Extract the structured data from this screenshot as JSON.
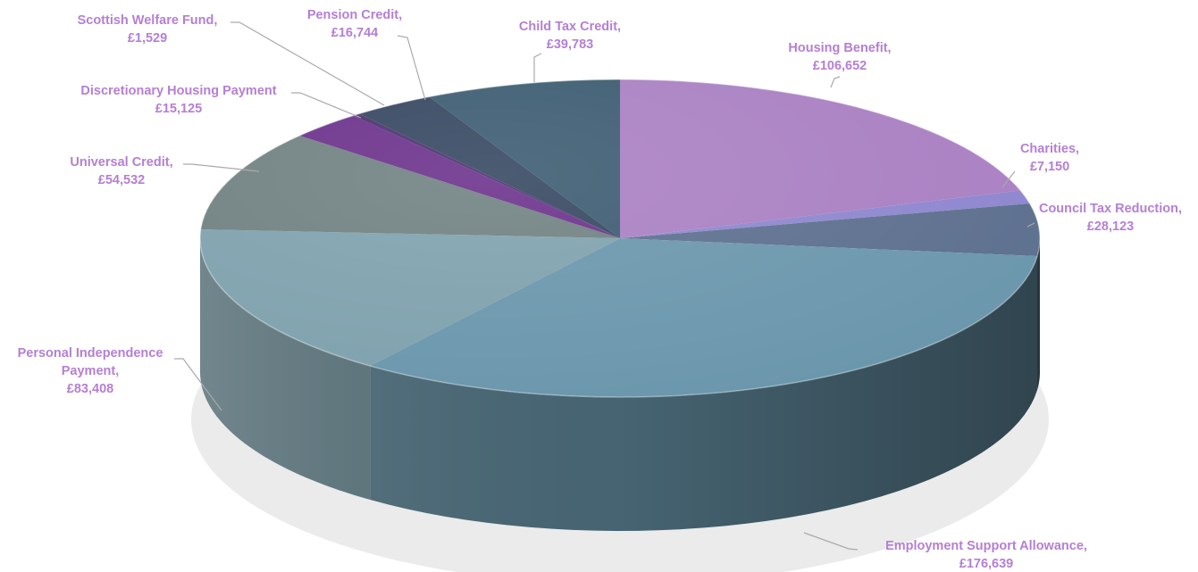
{
  "chart_data": {
    "type": "pie",
    "title": "",
    "slices": [
      {
        "name": "Housing Benefit,",
        "display": "£106,652",
        "value": 106652,
        "color": "#a97fc2"
      },
      {
        "name": "Charities,",
        "display": "£7,150",
        "value": 7150,
        "color": "#8e86cf"
      },
      {
        "name": "Council Tax Reduction,",
        "display": "£28,123",
        "value": 28123,
        "color": "#5c6f8e"
      },
      {
        "name": "Employment Support Allowance,",
        "display": "£176,639",
        "value": 176639,
        "color": "#6a96ac"
      },
      {
        "name": "Personal Independence Payment,",
        "display": "£83,408",
        "value": 83408,
        "color": "#7ea1ad"
      },
      {
        "name": "Universal Credit,",
        "display": "£54,532",
        "value": 54532,
        "color": "#6f8080"
      },
      {
        "name": "Discretionary Housing Payment",
        "display": "£15,125",
        "value": 15125,
        "color": "#6a2f8a"
      },
      {
        "name": "Scottish Welfare Fund,",
        "display": "£1,529",
        "value": 1529,
        "color": "#4a2f6e"
      },
      {
        "name": "Pension Credit,",
        "display": "£16,744",
        "value": 16744,
        "color": "#33455f"
      },
      {
        "name": "Child Tax Credit,",
        "display": "£39,783",
        "value": 39783,
        "color": "#3a5a70"
      }
    ],
    "label_color": "#b57fd3",
    "leader_color": "#aaaaaa"
  }
}
